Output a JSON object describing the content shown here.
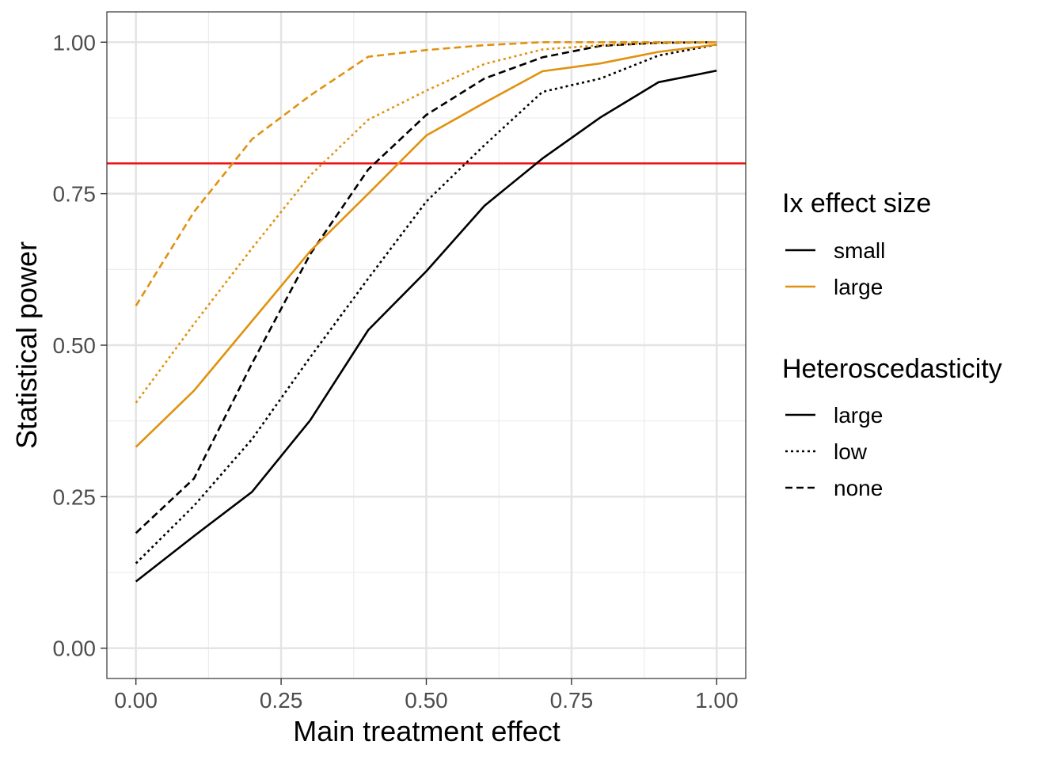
{
  "chart_data": {
    "type": "line",
    "title": "",
    "xlabel": "Main treatment effect",
    "ylabel": "Statistical power",
    "xlim": [
      -0.05,
      1.05
    ],
    "ylim": [
      -0.05,
      1.05
    ],
    "x_ticks": [
      0.0,
      0.25,
      0.5,
      0.75,
      1.0
    ],
    "x_tick_labels": [
      "0.00",
      "0.25",
      "0.50",
      "0.75",
      "1.00"
    ],
    "y_ticks": [
      0.0,
      0.25,
      0.5,
      0.75,
      1.0
    ],
    "y_tick_labels": [
      "0.00",
      "0.25",
      "0.50",
      "0.75",
      "1.00"
    ],
    "grid": true,
    "reference_line": {
      "y": 0.8,
      "color": "#ee1111"
    },
    "x": [
      0,
      0.1,
      0.2,
      0.3,
      0.4,
      0.5,
      0.6,
      0.7,
      0.8,
      0.9,
      1.0
    ],
    "series": [
      {
        "ix": "small",
        "het": "large",
        "values": [
          0.11,
          0.185,
          0.258,
          0.376,
          0.525,
          0.622,
          0.73,
          0.808,
          0.876,
          0.934,
          0.953
        ]
      },
      {
        "ix": "small",
        "het": "low",
        "values": [
          0.14,
          0.235,
          0.345,
          0.48,
          0.61,
          0.737,
          0.83,
          0.918,
          0.94,
          0.978,
          0.996
        ]
      },
      {
        "ix": "small",
        "het": "none",
        "values": [
          0.19,
          0.28,
          0.47,
          0.65,
          0.79,
          0.88,
          0.94,
          0.975,
          0.994,
          0.999,
          1.0
        ]
      },
      {
        "ix": "large",
        "het": "large",
        "values": [
          0.332,
          0.425,
          0.54,
          0.655,
          0.75,
          0.846,
          0.9,
          0.952,
          0.965,
          0.984,
          0.996
        ]
      },
      {
        "ix": "large",
        "het": "low",
        "values": [
          0.405,
          0.535,
          0.66,
          0.78,
          0.872,
          0.92,
          0.964,
          0.988,
          0.995,
          0.999,
          1.0
        ]
      },
      {
        "ix": "large",
        "het": "none",
        "values": [
          0.565,
          0.72,
          0.84,
          0.912,
          0.976,
          0.987,
          0.995,
          1.0,
          1.0,
          1.0,
          1.0
        ]
      }
    ],
    "colors": {
      "small": "#000000",
      "large": "#e0920f"
    },
    "dash_patterns": {
      "large": "none",
      "low": "3,4",
      "none": "9,5"
    },
    "legend": {
      "placement": "right",
      "color_title": "Ix effect size",
      "color_items": [
        "small",
        "large"
      ],
      "linetype_title": "Heteroscedasticity",
      "linetype_items": [
        "large",
        "low",
        "none"
      ]
    }
  }
}
